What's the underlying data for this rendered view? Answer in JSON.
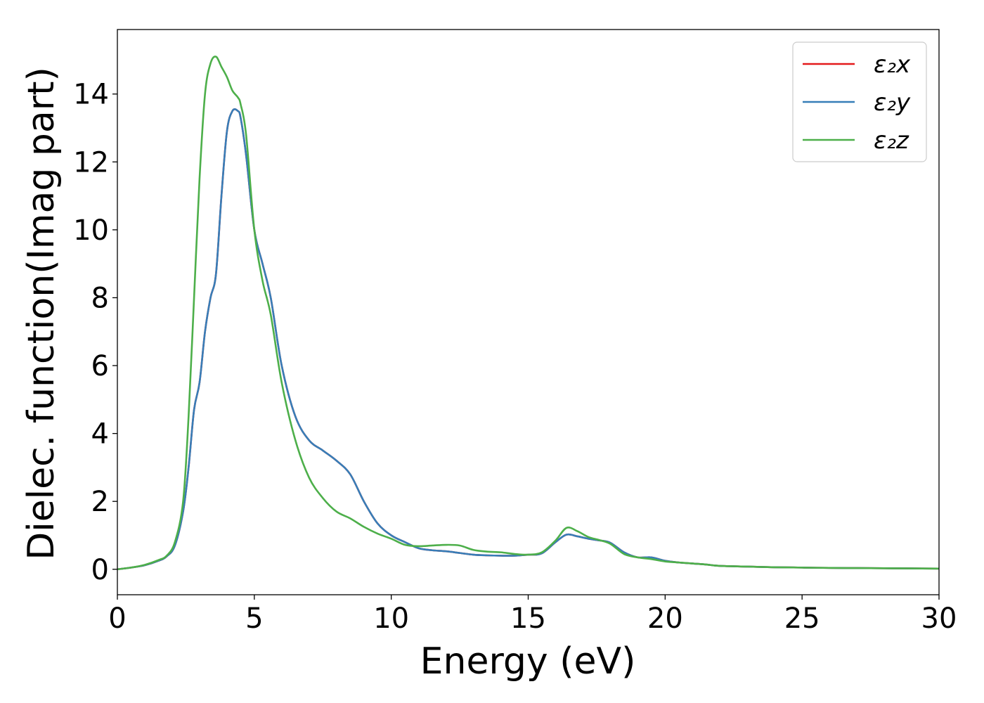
{
  "chart_data": {
    "type": "line",
    "xlabel": "Energy (eV)",
    "ylabel": "Dielec. function(Imag part)",
    "xlim": [
      0,
      30
    ],
    "ylim": [
      -0.75,
      15.9
    ],
    "x_ticks": [
      0,
      5,
      10,
      15,
      20,
      25,
      30
    ],
    "y_ticks": [
      0,
      2,
      4,
      6,
      8,
      10,
      12,
      14
    ],
    "grid": false,
    "legend_position": "top-right",
    "x": [
      0,
      0.5,
      1.0,
      1.5,
      1.8,
      2.1,
      2.4,
      2.6,
      2.8,
      3.0,
      3.2,
      3.4,
      3.6,
      3.8,
      4.0,
      4.2,
      4.4,
      4.5,
      4.7,
      5.0,
      5.3,
      5.6,
      6.0,
      6.5,
      7.0,
      7.5,
      8.0,
      8.5,
      9.0,
      9.5,
      10.0,
      10.5,
      11.0,
      11.5,
      12.0,
      12.5,
      13.0,
      13.5,
      14.0,
      14.5,
      15.0,
      15.5,
      16.0,
      16.4,
      16.8,
      17.2,
      17.6,
      18.0,
      18.5,
      19.0,
      19.5,
      20.0,
      20.5,
      21.0,
      21.5,
      22.0,
      23.0,
      24.0,
      25.0,
      26.0,
      27.0,
      28.0,
      29.0,
      30.0
    ],
    "series": [
      {
        "name": "ε₂x",
        "color": "#e41a1c",
        "values": [
          0,
          0.05,
          0.12,
          0.25,
          0.38,
          0.7,
          1.7,
          3.0,
          4.7,
          5.5,
          7.0,
          8.0,
          8.7,
          11.0,
          12.9,
          13.5,
          13.5,
          13.3,
          12.2,
          10.0,
          9.0,
          8.0,
          6.0,
          4.5,
          3.8,
          3.5,
          3.2,
          2.8,
          2.0,
          1.35,
          1.0,
          0.8,
          0.62,
          0.56,
          0.53,
          0.48,
          0.43,
          0.41,
          0.4,
          0.4,
          0.43,
          0.47,
          0.8,
          1.02,
          0.97,
          0.9,
          0.85,
          0.78,
          0.5,
          0.35,
          0.35,
          0.25,
          0.2,
          0.17,
          0.14,
          0.1,
          0.08,
          0.06,
          0.05,
          0.04,
          0.035,
          0.03,
          0.025,
          0.02
        ]
      },
      {
        "name": "ε₂y",
        "color": "#377eb8",
        "values": [
          0,
          0.05,
          0.12,
          0.25,
          0.38,
          0.7,
          1.7,
          3.0,
          4.7,
          5.5,
          7.0,
          8.0,
          8.7,
          11.0,
          12.9,
          13.5,
          13.5,
          13.3,
          12.2,
          10.0,
          9.0,
          8.0,
          6.0,
          4.5,
          3.8,
          3.5,
          3.2,
          2.8,
          2.0,
          1.35,
          1.0,
          0.8,
          0.62,
          0.56,
          0.53,
          0.48,
          0.43,
          0.41,
          0.4,
          0.4,
          0.43,
          0.47,
          0.8,
          1.02,
          0.97,
          0.9,
          0.85,
          0.78,
          0.5,
          0.35,
          0.35,
          0.25,
          0.2,
          0.17,
          0.14,
          0.1,
          0.08,
          0.06,
          0.05,
          0.04,
          0.035,
          0.03,
          0.025,
          0.02
        ]
      },
      {
        "name": "ε₂z",
        "color": "#4daf4a",
        "values": [
          0,
          0.05,
          0.13,
          0.27,
          0.4,
          0.8,
          2.0,
          4.5,
          8.0,
          11.5,
          14.0,
          14.9,
          15.1,
          14.8,
          14.5,
          14.1,
          13.9,
          13.7,
          12.8,
          10.0,
          8.5,
          7.5,
          5.5,
          3.8,
          2.7,
          2.1,
          1.7,
          1.5,
          1.25,
          1.05,
          0.9,
          0.72,
          0.68,
          0.7,
          0.72,
          0.7,
          0.57,
          0.52,
          0.5,
          0.45,
          0.43,
          0.5,
          0.85,
          1.22,
          1.12,
          0.95,
          0.86,
          0.75,
          0.45,
          0.35,
          0.3,
          0.23,
          0.2,
          0.17,
          0.14,
          0.1,
          0.08,
          0.06,
          0.05,
          0.04,
          0.035,
          0.03,
          0.025,
          0.02
        ]
      }
    ]
  }
}
